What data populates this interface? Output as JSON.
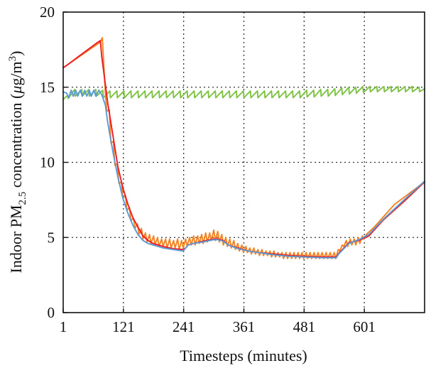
{
  "chart_data": {
    "type": "line",
    "title": "",
    "xlabel": "Timesteps (minutes)",
    "ylabel_parts": {
      "before": "Indoor PM",
      "subscript": "2.5",
      "middle": " concentration (",
      "mu": "μ",
      "unit": "g/m",
      "superscript": "3",
      "after": ")"
    },
    "xlim": [
      1,
      721
    ],
    "ylim": [
      0,
      20
    ],
    "xticks": [
      1,
      121,
      241,
      361,
      481,
      601
    ],
    "xtick_labels": [
      "1",
      "121",
      "241",
      "361",
      "481",
      "601"
    ],
    "yticks": [
      0,
      5,
      10,
      15,
      20
    ],
    "ytick_labels": [
      "0",
      "5",
      "10",
      "15",
      "20"
    ],
    "grid": true,
    "legend": "none",
    "series": [
      {
        "color": "#7dc242",
        "x": [
          1,
          10,
          11,
          24,
          25,
          38,
          39,
          52,
          53,
          66,
          67,
          80,
          81,
          94,
          95,
          108,
          109,
          122,
          123,
          136,
          137,
          150,
          151,
          164,
          165,
          178,
          179,
          192,
          193,
          206,
          207,
          220,
          221,
          234,
          235,
          248,
          249,
          262,
          263,
          276,
          277,
          290,
          291,
          304,
          305,
          318,
          319,
          332,
          333,
          346,
          347,
          360,
          361,
          374,
          375,
          388,
          389,
          402,
          403,
          416,
          417,
          430,
          431,
          444,
          445,
          458,
          459,
          472,
          473,
          486,
          487,
          500,
          501,
          514,
          515,
          528,
          529,
          542,
          543,
          556,
          557,
          570,
          571,
          584,
          585,
          598,
          599,
          612,
          613,
          626,
          627,
          640,
          641,
          654,
          655,
          668,
          669,
          682,
          683,
          696,
          697,
          710,
          711,
          721
        ],
        "y": [
          14.2,
          14.45,
          14.25,
          14.85,
          14.4,
          14.85,
          14.4,
          14.85,
          14.4,
          14.85,
          14.4,
          14.8,
          14.3,
          14.75,
          14.3,
          14.75,
          14.3,
          14.75,
          14.3,
          14.75,
          14.3,
          14.75,
          14.3,
          14.75,
          14.3,
          14.75,
          14.3,
          14.75,
          14.3,
          14.75,
          14.3,
          14.75,
          14.3,
          14.75,
          14.3,
          14.75,
          14.3,
          14.75,
          14.3,
          14.75,
          14.3,
          14.75,
          14.3,
          14.75,
          14.3,
          14.75,
          14.3,
          14.75,
          14.3,
          14.75,
          14.3,
          14.75,
          14.3,
          14.75,
          14.3,
          14.75,
          14.3,
          14.75,
          14.3,
          14.75,
          14.3,
          14.75,
          14.3,
          14.75,
          14.3,
          14.75,
          14.3,
          14.75,
          14.3,
          14.8,
          14.35,
          14.8,
          14.35,
          14.85,
          14.4,
          14.85,
          14.4,
          14.9,
          14.45,
          14.95,
          14.5,
          15.0,
          14.55,
          15.0,
          14.6,
          15.05,
          14.65,
          15.05,
          14.7,
          15.05,
          14.7,
          15.05,
          14.7,
          15.05,
          14.7,
          15.05,
          14.7,
          15.05,
          14.7,
          15.05,
          14.7,
          15.0,
          14.7,
          14.9
        ]
      },
      {
        "color": "#f5821f",
        "x": [
          1,
          75,
          79,
          85,
          88,
          93,
          96,
          101,
          104,
          109,
          112,
          117,
          120,
          125,
          128,
          133,
          136,
          141,
          144,
          149,
          152,
          157,
          160,
          165,
          168,
          173,
          176,
          181,
          184,
          189,
          192,
          197,
          200,
          205,
          208,
          213,
          216,
          221,
          224,
          229,
          232,
          237,
          240,
          245,
          248,
          253,
          256,
          261,
          264,
          269,
          272,
          277,
          280,
          285,
          288,
          293,
          296,
          301,
          304,
          309,
          312,
          317,
          320,
          325,
          328,
          333,
          336,
          341,
          344,
          349,
          352,
          357,
          360,
          365,
          368,
          373,
          376,
          381,
          384,
          389,
          392,
          397,
          400,
          405,
          408,
          413,
          416,
          421,
          424,
          429,
          432,
          437,
          440,
          445,
          448,
          453,
          456,
          461,
          464,
          469,
          472,
          477,
          480,
          485,
          488,
          493,
          496,
          501,
          504,
          509,
          512,
          517,
          520,
          525,
          528,
          533,
          536,
          541,
          544,
          549,
          552,
          557,
          560,
          565,
          568,
          573,
          576,
          581,
          584,
          589,
          592,
          597,
          600,
          605,
          621,
          661,
          721
        ],
        "y": [
          16.3,
          18.0,
          18.3,
          14.6,
          13.4,
          13.5,
          11.3,
          11.4,
          9.8,
          9.9,
          8.6,
          8.7,
          7.6,
          7.8,
          6.8,
          7.0,
          6.1,
          6.3,
          5.6,
          5.9,
          5.2,
          5.6,
          4.9,
          5.3,
          4.7,
          5.2,
          4.6,
          5.1,
          4.5,
          5.0,
          4.4,
          4.9,
          4.4,
          4.9,
          4.3,
          4.9,
          4.3,
          4.8,
          4.3,
          4.9,
          4.2,
          4.8,
          4.3,
          4.9,
          4.4,
          5.0,
          4.5,
          5.1,
          4.5,
          5.1,
          4.6,
          5.2,
          4.6,
          5.3,
          4.7,
          5.3,
          4.8,
          5.5,
          4.8,
          5.4,
          4.7,
          5.2,
          4.5,
          5.0,
          4.4,
          4.9,
          4.3,
          4.8,
          4.2,
          4.6,
          4.1,
          4.5,
          4.0,
          4.4,
          4.0,
          4.3,
          3.9,
          4.3,
          3.9,
          4.2,
          3.8,
          4.2,
          3.8,
          4.1,
          3.8,
          4.1,
          3.7,
          4.1,
          3.7,
          4.0,
          3.7,
          4.0,
          3.6,
          4.0,
          3.6,
          4.0,
          3.6,
          4.0,
          3.6,
          4.0,
          3.6,
          4.0,
          3.6,
          4.0,
          3.6,
          4.0,
          3.6,
          4.0,
          3.6,
          4.0,
          3.6,
          4.0,
          3.6,
          4.0,
          3.6,
          4.0,
          3.6,
          4.0,
          3.6,
          4.2,
          4.1,
          4.5,
          4.4,
          4.8,
          4.4,
          4.9,
          4.5,
          4.9,
          4.5,
          5.0,
          4.6,
          5.1,
          4.9,
          5.2,
          5.7,
          7.2,
          8.7
        ]
      },
      {
        "color": "#ed1c24",
        "x": [
          1,
          10,
          30,
          50,
          68,
          75,
          78,
          90,
          100,
          110,
          120,
          130,
          140,
          150,
          160,
          170,
          180,
          190,
          200,
          220,
          240,
          245,
          250,
          260,
          280,
          300,
          310,
          320,
          330,
          350,
          370,
          390,
          420,
          450,
          480,
          520,
          545,
          550,
          560,
          570,
          590,
          610,
          640,
          680,
          721
        ],
        "y": [
          16.3,
          16.5,
          17.0,
          17.5,
          17.95,
          18.1,
          17.0,
          13.9,
          11.8,
          9.7,
          8.3,
          7.2,
          6.3,
          5.7,
          5.1,
          4.8,
          4.6,
          4.5,
          4.4,
          4.25,
          4.2,
          4.3,
          4.5,
          4.6,
          4.75,
          4.9,
          4.9,
          4.8,
          4.5,
          4.3,
          4.1,
          4.0,
          3.9,
          3.8,
          3.75,
          3.7,
          3.7,
          3.95,
          4.3,
          4.65,
          4.8,
          5.1,
          6.2,
          7.4,
          8.7
        ]
      },
      {
        "color": "#5b9bd5",
        "x": [
          1,
          8,
          12,
          17,
          21,
          26,
          30,
          35,
          39,
          44,
          48,
          53,
          57,
          62,
          66,
          72,
          78,
          85,
          90,
          100,
          110,
          120,
          130,
          140,
          150,
          160,
          170,
          180,
          190,
          200,
          220,
          240,
          245,
          250,
          260,
          280,
          300,
          310,
          320,
          330,
          350,
          370,
          390,
          420,
          450,
          480,
          520,
          545,
          550,
          560,
          570,
          590,
          610,
          640,
          680,
          721
        ],
        "y": [
          14.7,
          14.6,
          14.3,
          14.8,
          14.4,
          14.8,
          14.4,
          14.8,
          14.4,
          14.8,
          14.4,
          14.8,
          14.4,
          14.8,
          14.4,
          14.8,
          14.5,
          13.8,
          12.6,
          10.7,
          9.0,
          7.6,
          6.6,
          5.8,
          5.2,
          4.8,
          4.6,
          4.5,
          4.4,
          4.3,
          4.2,
          4.1,
          4.3,
          4.5,
          4.6,
          4.7,
          4.85,
          4.85,
          4.75,
          4.5,
          4.25,
          4.1,
          4.0,
          3.85,
          3.75,
          3.7,
          3.65,
          3.65,
          3.9,
          4.25,
          4.6,
          4.85,
          5.2,
          6.25,
          7.5,
          8.75
        ]
      }
    ]
  }
}
